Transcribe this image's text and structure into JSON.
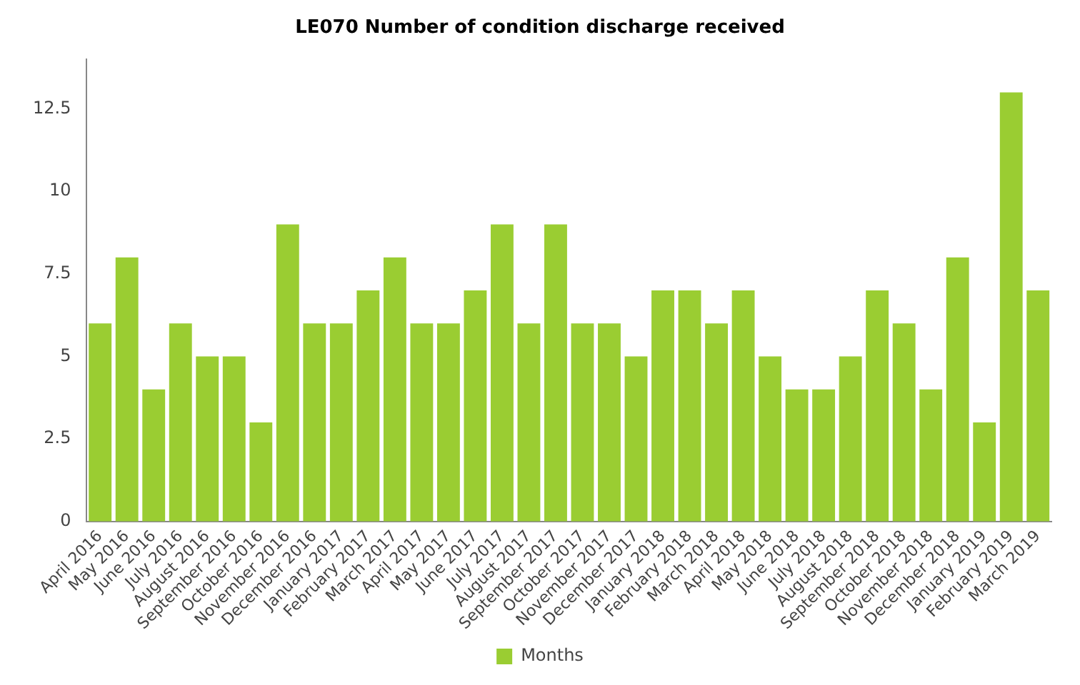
{
  "chart_data": {
    "type": "bar",
    "title": "LE070 Number of condition discharge received",
    "categories": [
      "April 2016",
      "May 2016",
      "June 2016",
      "July 2016",
      "August 2016",
      "September 2016",
      "October 2016",
      "November 2016",
      "December 2016",
      "January 2017",
      "February 2017",
      "March 2017",
      "April 2017",
      "May 2017",
      "June 2017",
      "July 2017",
      "August 2017",
      "September 2017",
      "October 2017",
      "November 2017",
      "December 2017",
      "January 2018",
      "February 2018",
      "March 2018",
      "April 2018",
      "May 2018",
      "June 2018",
      "July 2018",
      "August 2018",
      "September 2018",
      "October 2018",
      "November 2018",
      "December 2018",
      "January 2019",
      "February 2019",
      "March 2019"
    ],
    "series": [
      {
        "name": "Months",
        "color": "#9acd32",
        "values": [
          6,
          8,
          4,
          6,
          5,
          5,
          3,
          9,
          6,
          6,
          7,
          8,
          6,
          6,
          7,
          9,
          6,
          9,
          6,
          6,
          5,
          7,
          7,
          6,
          7,
          5,
          4,
          4,
          5,
          7,
          6,
          4,
          8,
          3,
          13,
          7
        ]
      }
    ],
    "ylim": [
      0,
      14
    ],
    "yticks": [
      0,
      2.5,
      5,
      7.5,
      10,
      12.5
    ],
    "grid": false,
    "legend": "bottom"
  }
}
